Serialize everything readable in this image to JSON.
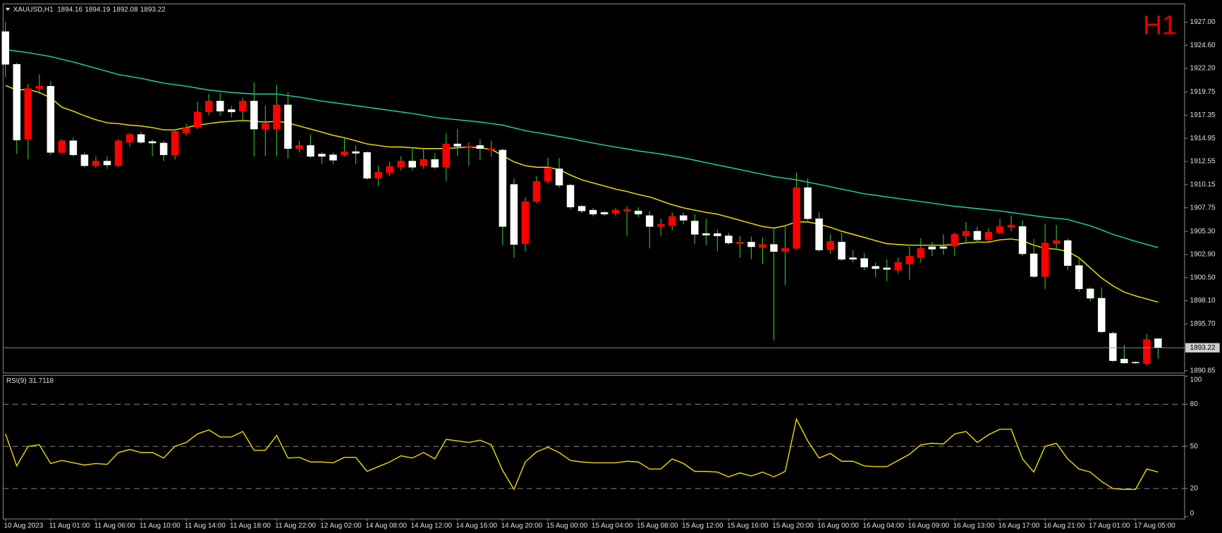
{
  "chart_data": [
    {
      "type": "candlestick",
      "title": "XAUUSD,H1",
      "corner_label": "H1",
      "categories": [
        "10 Aug 2023",
        null,
        null,
        null,
        "11 Aug 01:00",
        null,
        null,
        null,
        "11 Aug 06:00",
        null,
        null,
        null,
        "11 Aug 10:00",
        null,
        null,
        null,
        "11 Aug 14:00",
        null,
        null,
        null,
        "11 Aug 18:00",
        null,
        null,
        null,
        "11 Aug 22:00",
        null,
        null,
        null,
        "12 Aug 02:00",
        null,
        null,
        null,
        "14 Aug 08:00",
        null,
        null,
        null,
        "14 Aug 12:00",
        null,
        null,
        null,
        "14 Aug 16:00",
        null,
        null,
        null,
        "14 Aug 20:00",
        null,
        null,
        null,
        "15 Aug 00:00",
        null,
        null,
        null,
        "15 Aug 04:00",
        null,
        null,
        null,
        "15 Aug 08:00",
        null,
        null,
        null,
        "15 Aug 12:00",
        null,
        null,
        null,
        "15 Aug 16:00",
        null,
        null,
        null,
        "15 Aug 20:00",
        null,
        null,
        null,
        "16 Aug 00:00",
        null,
        null,
        null,
        "16 Aug 04:00",
        null,
        null,
        null,
        "16 Aug 09:00",
        null,
        null,
        null,
        "16 Aug 13:00",
        null,
        null,
        null,
        "16 Aug 17:00",
        null,
        null,
        null,
        "16 Aug 21:00",
        null,
        null,
        null,
        "17 Aug 01:00",
        null,
        null,
        null,
        "17 Aug 05:00",
        null,
        null
      ],
      "open": [
        1926.02,
        1922.63,
        1914.86,
        1920.12,
        1920.36,
        1913.49,
        1914.7,
        1913.24,
        1912.11,
        1912.59,
        1912.11,
        1914.54,
        1915.35,
        1914.62,
        1914.46,
        1913.24,
        1915.51,
        1916.07,
        1917.69,
        1918.82,
        1917.93,
        1917.77,
        1918.82,
        1915.91,
        1915.91,
        1918.42,
        1913.89,
        1914.21,
        1913.32,
        1913.24,
        1913.24,
        1913.57,
        1913.49,
        1910.81,
        1911.38,
        1911.95,
        1912.59,
        1912.11,
        1912.76,
        1911.95,
        1914.37,
        1913.97,
        1914.21,
        1913.73,
        1913.73,
        1910.17,
        1904.02,
        1908.39,
        1910.49,
        1911.79,
        1910.09,
        1907.9,
        1907.5,
        1907.26,
        1907.18,
        1907.42,
        1907.42,
        1906.93,
        1905.8,
        1905.88,
        1906.93,
        1906.37,
        1905.07,
        1905.07,
        1904.83,
        1904.02,
        1904.18,
        1903.61,
        1903.94,
        1903.21,
        1903.53,
        1909.84,
        1906.61,
        1903.37,
        1904.18,
        1902.56,
        1902.48,
        1901.67,
        1901.51,
        1901.27,
        1901.92,
        1902.56,
        1903.7,
        1903.7,
        1903.78,
        1904.83,
        1905.31,
        1904.42,
        1905.15,
        1905.72,
        1905.8,
        1902.97,
        1900.62,
        1904.02,
        1904.34,
        1901.75,
        1899.33,
        1898.36,
        1894.72,
        1892.05,
        1891.72,
        1891.56,
        1894.16
      ],
      "high": [
        1927.0,
        1922.79,
        1920.6,
        1921.57,
        1920.93,
        1914.86,
        1915.02,
        1913.49,
        1913.08,
        1913.08,
        1914.86,
        1915.51,
        1915.67,
        1914.86,
        1914.7,
        1915.91,
        1916.48,
        1918.74,
        1919.55,
        1919.71,
        1918.34,
        1919.15,
        1920.77,
        1918.34,
        1920.52,
        1919.71,
        1914.7,
        1915.35,
        1913.49,
        1913.49,
        1915.02,
        1914.21,
        1913.57,
        1912.11,
        1912.51,
        1913.08,
        1913.89,
        1913.89,
        1913.4,
        1915.51,
        1915.91,
        1914.54,
        1914.86,
        1914.7,
        1913.89,
        1910.81,
        1908.87,
        1911.06,
        1912.92,
        1912.92,
        1910.25,
        1908.06,
        1907.74,
        1907.42,
        1907.74,
        1907.9,
        1907.82,
        1907.42,
        1906.61,
        1907.26,
        1907.26,
        1907.09,
        1906.61,
        1905.48,
        1905.15,
        1904.83,
        1904.75,
        1904.67,
        1905.64,
        1905.8,
        1911.38,
        1910.81,
        1907.26,
        1904.99,
        1905.15,
        1903.37,
        1903.05,
        1902.08,
        1902.4,
        1902.56,
        1903.7,
        1904.59,
        1904.18,
        1904.99,
        1905.15,
        1906.28,
        1905.8,
        1905.64,
        1906.61,
        1906.93,
        1906.45,
        1904.51,
        1906.12,
        1905.96,
        1904.59,
        1902.56,
        1899.49,
        1899.49,
        1894.88,
        1893.5,
        1891.8,
        1894.63,
        1894.19
      ],
      "low": [
        1921.33,
        1913.32,
        1912.76,
        1919.55,
        1913.24,
        1913.32,
        1913.08,
        1911.95,
        1911.87,
        1911.79,
        1911.95,
        1914.05,
        1914.37,
        1913.08,
        1912.59,
        1912.76,
        1915.26,
        1915.91,
        1917.37,
        1917.29,
        1917.13,
        1916.64,
        1913.08,
        1913.08,
        1913.08,
        1912.84,
        1913.49,
        1912.92,
        1912.27,
        1912.27,
        1913.08,
        1912.27,
        1910.65,
        1910.01,
        1911.06,
        1911.62,
        1911.62,
        1911.79,
        1911.79,
        1910.49,
        1913.08,
        1912.11,
        1912.76,
        1913.08,
        1903.86,
        1902.56,
        1903.21,
        1908.23,
        1910.25,
        1909.84,
        1907.58,
        1907.18,
        1906.85,
        1906.93,
        1906.93,
        1904.83,
        1906.77,
        1903.53,
        1904.83,
        1905.4,
        1906.04,
        1904.02,
        1903.86,
        1903.21,
        1903.94,
        1902.56,
        1902.4,
        1901.92,
        1893.99,
        1899.73,
        1903.37,
        1906.37,
        1903.21,
        1902.97,
        1902.24,
        1902.08,
        1901.27,
        1900.54,
        1900.14,
        1900.95,
        1900.3,
        1902.08,
        1902.73,
        1902.89,
        1902.73,
        1904.02,
        1904.18,
        1904.18,
        1904.99,
        1905.31,
        1902.73,
        1900.46,
        1899.33,
        1903.37,
        1901.27,
        1899.0,
        1898.03,
        1894.72,
        1891.72,
        1891.56,
        1891.56,
        1891.4,
        1892.08
      ],
      "close": [
        1922.63,
        1914.78,
        1920.12,
        1920.36,
        1913.49,
        1914.7,
        1913.24,
        1912.11,
        1912.59,
        1912.19,
        1914.7,
        1915.35,
        1914.54,
        1914.46,
        1913.24,
        1915.67,
        1916.07,
        1917.69,
        1918.82,
        1917.77,
        1917.69,
        1918.82,
        1915.91,
        1916.48,
        1918.42,
        1913.89,
        1914.21,
        1913.08,
        1913.08,
        1912.68,
        1913.57,
        1913.4,
        1910.81,
        1911.46,
        1912.03,
        1912.59,
        1911.95,
        1912.76,
        1911.95,
        1914.37,
        1914.13,
        1914.13,
        1913.89,
        1913.89,
        1905.8,
        1903.94,
        1908.39,
        1910.49,
        1911.87,
        1910.09,
        1907.82,
        1907.42,
        1907.09,
        1907.09,
        1907.5,
        1907.58,
        1907.09,
        1905.8,
        1906.04,
        1906.85,
        1906.45,
        1904.99,
        1904.91,
        1904.83,
        1904.1,
        1904.18,
        1903.7,
        1903.94,
        1903.21,
        1903.53,
        1909.84,
        1906.61,
        1903.37,
        1904.26,
        1902.4,
        1902.4,
        1901.59,
        1901.43,
        1901.35,
        1902.08,
        1902.73,
        1903.53,
        1903.45,
        1903.53,
        1904.99,
        1905.31,
        1904.42,
        1905.23,
        1905.8,
        1905.96,
        1902.97,
        1900.62,
        1904.1,
        1904.34,
        1901.75,
        1899.33,
        1898.36,
        1894.88,
        1891.88,
        1891.64,
        1891.64,
        1894.07,
        1893.22
      ],
      "up_color": "#ff0000",
      "down_color": "#ffffff",
      "wick_color": "#2ec42e",
      "overlays": [
        {
          "color": "#1fd3a8",
          "values": [
            1924.16,
            1924.0,
            1923.84,
            1923.64,
            1923.44,
            1923.15,
            1922.87,
            1922.55,
            1922.22,
            1921.9,
            1921.57,
            1921.37,
            1921.17,
            1920.93,
            1920.68,
            1920.52,
            1920.36,
            1920.16,
            1919.96,
            1919.84,
            1919.71,
            1919.63,
            1919.55,
            1919.55,
            1919.55,
            1919.39,
            1919.23,
            1919.03,
            1918.82,
            1918.66,
            1918.5,
            1918.34,
            1918.18,
            1918.02,
            1917.85,
            1917.69,
            1917.53,
            1917.33,
            1917.13,
            1917.0,
            1916.88,
            1916.76,
            1916.64,
            1916.48,
            1916.32,
            1916.03,
            1915.75,
            1915.55,
            1915.35,
            1915.14,
            1914.94,
            1914.7,
            1914.46,
            1914.25,
            1914.05,
            1913.85,
            1913.65,
            1913.49,
            1913.32,
            1913.12,
            1912.92,
            1912.68,
            1912.43,
            1912.19,
            1911.95,
            1911.71,
            1911.46,
            1911.22,
            1910.98,
            1910.81,
            1910.65,
            1910.41,
            1910.17,
            1909.93,
            1909.68,
            1909.44,
            1909.2,
            1909.04,
            1908.87,
            1908.71,
            1908.55,
            1908.39,
            1908.23,
            1908.06,
            1907.9,
            1907.78,
            1907.66,
            1907.54,
            1907.42,
            1907.26,
            1907.09,
            1906.93,
            1906.77,
            1906.65,
            1906.53,
            1906.2,
            1905.88,
            1905.44,
            1904.99,
            1904.63,
            1904.26,
            1903.94,
            1903.61
          ]
        },
        {
          "color": "#f5e400",
          "values": [
            1920.44,
            1919.96,
            1920.04,
            1919.71,
            1919.15,
            1918.18,
            1917.77,
            1917.29,
            1916.88,
            1916.56,
            1916.48,
            1916.32,
            1916.23,
            1916.07,
            1915.83,
            1915.83,
            1916.07,
            1916.32,
            1916.48,
            1916.64,
            1916.72,
            1916.8,
            1916.72,
            1916.64,
            1916.72,
            1916.56,
            1916.23,
            1915.91,
            1915.59,
            1915.26,
            1915.02,
            1914.7,
            1914.37,
            1914.21,
            1914.05,
            1914.05,
            1913.97,
            1913.89,
            1913.89,
            1913.89,
            1913.97,
            1914.05,
            1913.97,
            1913.81,
            1913.16,
            1912.51,
            1912.11,
            1911.95,
            1911.95,
            1911.71,
            1911.14,
            1910.65,
            1910.33,
            1910.01,
            1909.68,
            1909.44,
            1909.12,
            1908.87,
            1908.47,
            1908.06,
            1907.74,
            1907.5,
            1907.26,
            1907.09,
            1906.77,
            1906.45,
            1906.12,
            1905.8,
            1905.64,
            1905.88,
            1906.28,
            1906.28,
            1906.04,
            1905.72,
            1905.31,
            1904.99,
            1904.67,
            1904.34,
            1904.02,
            1903.94,
            1903.86,
            1903.86,
            1903.86,
            1903.86,
            1903.94,
            1904.1,
            1904.18,
            1904.18,
            1904.42,
            1904.51,
            1904.34,
            1903.86,
            1903.53,
            1903.45,
            1903.21,
            1902.56,
            1901.51,
            1900.46,
            1899.65,
            1899.0,
            1898.6,
            1898.28,
            1897.95
          ]
        }
      ],
      "ylim": [
        1890.6,
        1928.9
      ],
      "yticks": [
        {
          "value": 1927,
          "label": "1927.00"
        },
        {
          "value": 1924.6,
          "label": "1924.60"
        },
        {
          "value": 1922.2,
          "label": "1922.20"
        },
        1919.75,
        1917.35,
        1914.95,
        1912.55,
        1910.15,
        1907.75,
        {
          "value": 1905.3,
          "label": "1905.30"
        },
        {
          "value": 1902.9,
          "label": "1902.90"
        },
        {
          "value": 1900.5,
          "label": "1900.50"
        },
        {
          "value": 1898.1,
          "label": "1898.10"
        },
        {
          "value": 1895.7,
          "label": "1895.70"
        },
        1890.85
      ]
    },
    {
      "type": "line",
      "title": "RSI(9)",
      "color": "#e8d800",
      "values": [
        58.9,
        36.1,
        50.0,
        51.1,
        37.8,
        40.0,
        38.3,
        36.7,
        37.8,
        37.2,
        45.6,
        47.8,
        45.6,
        45.6,
        41.7,
        50.0,
        52.8,
        58.9,
        61.7,
        56.7,
        56.7,
        60.6,
        47.2,
        47.2,
        57.8,
        41.7,
        42.2,
        38.9,
        38.9,
        38.3,
        42.2,
        42.2,
        32.2,
        35.6,
        38.9,
        43.3,
        41.7,
        45.6,
        41.1,
        55.0,
        53.9,
        52.8,
        54.4,
        51.1,
        32.8,
        19.4,
        38.9,
        46.1,
        49.4,
        45.6,
        40.0,
        38.9,
        38.3,
        38.3,
        38.3,
        39.4,
        38.9,
        33.9,
        33.9,
        41.1,
        37.8,
        32.2,
        32.2,
        31.7,
        28.3,
        31.1,
        28.9,
        31.7,
        28.3,
        32.2,
        69.4,
        53.9,
        41.7,
        45.0,
        39.4,
        39.4,
        36.1,
        35.6,
        35.6,
        40.0,
        44.4,
        51.1,
        52.2,
        51.7,
        58.9,
        60.6,
        52.8,
        58.3,
        62.2,
        62.2,
        41.1,
        31.7,
        50.0,
        52.2,
        41.1,
        33.9,
        31.7,
        25.0,
        20.0,
        19.4,
        19.4,
        33.9,
        31.7118
      ],
      "ylim": [
        0,
        100
      ],
      "yticks": [
        0,
        20,
        50,
        80,
        100
      ]
    }
  ]
}
